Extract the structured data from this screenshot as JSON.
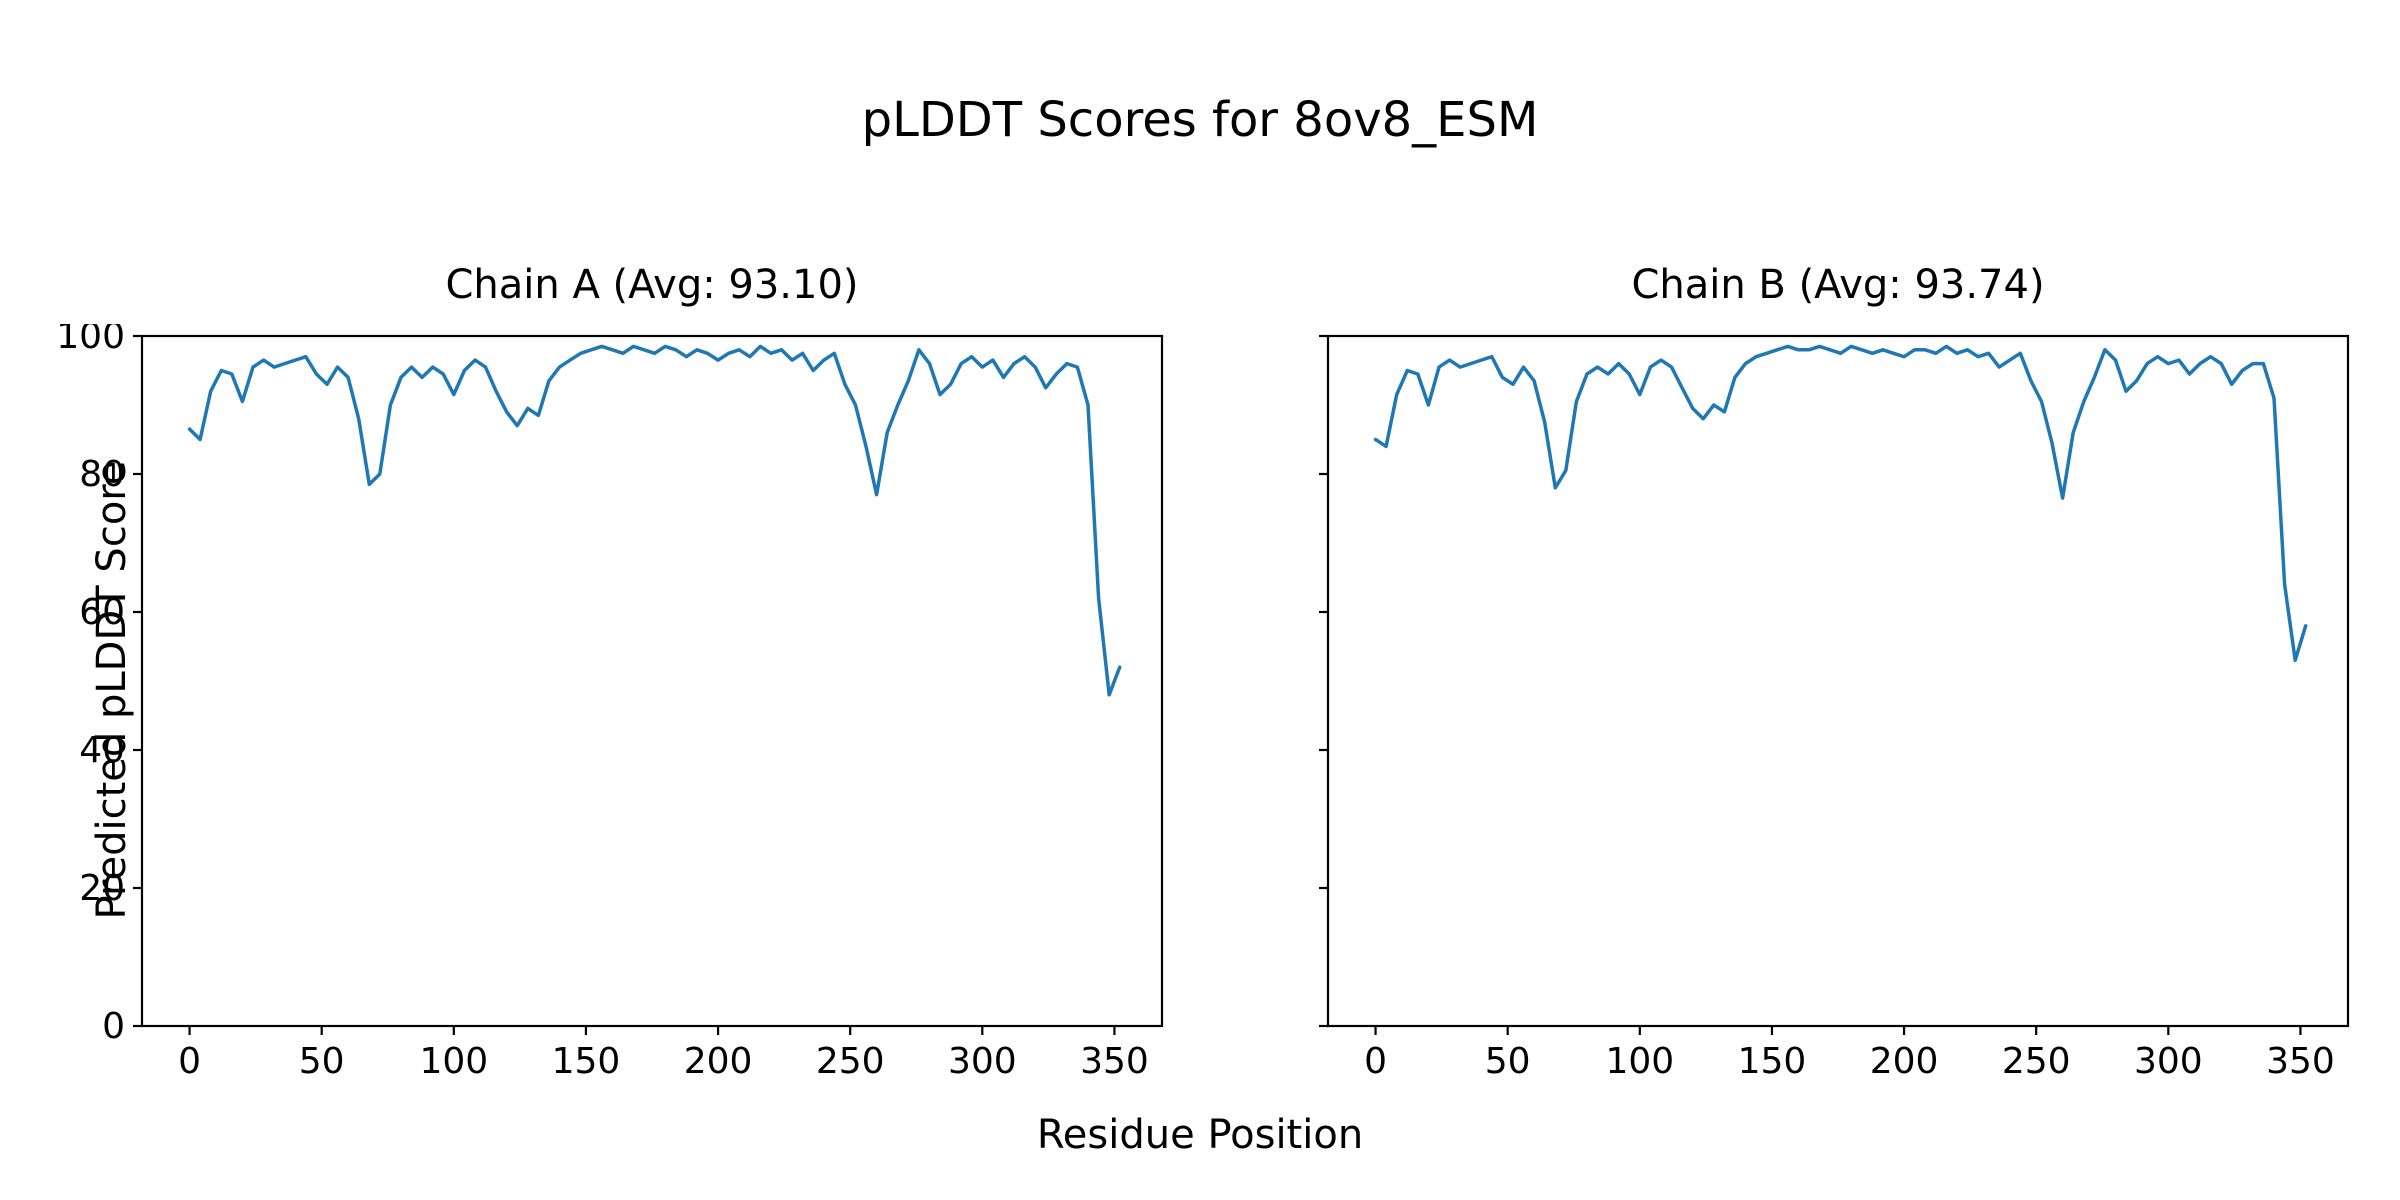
{
  "figure": {
    "title": "pLDDT Scores for 8ov8_ESM",
    "xlabel": "Residue Position",
    "ylabel": "Predicted pLDDT Score",
    "background": "#ffffff",
    "line_color": "#1f77b4",
    "axis_color": "#000000"
  },
  "chart_data": [
    {
      "type": "line",
      "title": "Chain A (Avg: 93.10)",
      "avg": 93.1,
      "xlabel": "Residue Position",
      "ylabel": "Predicted pLDDT Score",
      "xlim": [
        -18,
        368
      ],
      "ylim": [
        0,
        100
      ],
      "xticks": [
        0,
        50,
        100,
        150,
        200,
        250,
        300,
        350
      ],
      "yticks": [
        0,
        20,
        40,
        60,
        80,
        100
      ],
      "grid": false,
      "legend": "none",
      "x": [
        0,
        4,
        8,
        12,
        16,
        20,
        24,
        28,
        32,
        36,
        40,
        44,
        48,
        52,
        56,
        60,
        64,
        68,
        72,
        76,
        80,
        84,
        88,
        92,
        96,
        100,
        104,
        108,
        112,
        116,
        120,
        124,
        128,
        132,
        136,
        140,
        144,
        148,
        152,
        156,
        160,
        164,
        168,
        172,
        176,
        180,
        184,
        188,
        192,
        196,
        200,
        204,
        208,
        212,
        216,
        220,
        224,
        228,
        232,
        236,
        240,
        244,
        248,
        252,
        256,
        260,
        264,
        268,
        272,
        276,
        280,
        284,
        288,
        292,
        296,
        300,
        304,
        308,
        312,
        316,
        320,
        324,
        328,
        332,
        336,
        340,
        344,
        348,
        352
      ],
      "values": [
        86.5,
        85.0,
        92.0,
        95.0,
        94.5,
        90.5,
        95.5,
        96.5,
        95.5,
        96.0,
        96.5,
        97.0,
        94.5,
        93.0,
        95.5,
        94.0,
        88.0,
        78.5,
        80.0,
        90.0,
        94.0,
        95.5,
        94.0,
        95.5,
        94.5,
        91.5,
        95.0,
        96.5,
        95.5,
        92.0,
        89.0,
        87.0,
        89.5,
        88.5,
        93.5,
        95.5,
        96.5,
        97.5,
        98.0,
        98.5,
        98.0,
        97.5,
        98.5,
        98.0,
        97.5,
        98.5,
        98.0,
        97.0,
        98.0,
        97.5,
        96.5,
        97.5,
        98.0,
        97.0,
        98.5,
        97.5,
        98.0,
        96.5,
        97.5,
        95.0,
        96.5,
        97.5,
        93.0,
        90.0,
        84.0,
        77.0,
        86.0,
        90.0,
        93.5,
        98.0,
        96.0,
        91.5,
        93.0,
        96.0,
        97.0,
        95.5,
        96.5,
        94.0,
        96.0,
        97.0,
        95.5,
        92.5,
        94.5,
        96.0,
        95.5,
        90.0,
        62.0,
        48.0,
        52.0
      ]
    },
    {
      "type": "line",
      "title": "Chain B (Avg: 93.74)",
      "avg": 93.74,
      "xlabel": "Residue Position",
      "ylabel": "Predicted pLDDT Score",
      "xlim": [
        -18,
        368
      ],
      "ylim": [
        0,
        100
      ],
      "xticks": [
        0,
        50,
        100,
        150,
        200,
        250,
        300,
        350
      ],
      "yticks": [
        0,
        20,
        40,
        60,
        80,
        100
      ],
      "grid": false,
      "legend": "none",
      "x": [
        0,
        4,
        8,
        12,
        16,
        20,
        24,
        28,
        32,
        36,
        40,
        44,
        48,
        52,
        56,
        60,
        64,
        68,
        72,
        76,
        80,
        84,
        88,
        92,
        96,
        100,
        104,
        108,
        112,
        116,
        120,
        124,
        128,
        132,
        136,
        140,
        144,
        148,
        152,
        156,
        160,
        164,
        168,
        172,
        176,
        180,
        184,
        188,
        192,
        196,
        200,
        204,
        208,
        212,
        216,
        220,
        224,
        228,
        232,
        236,
        240,
        244,
        248,
        252,
        256,
        260,
        264,
        268,
        272,
        276,
        280,
        284,
        288,
        292,
        296,
        300,
        304,
        308,
        312,
        316,
        320,
        324,
        328,
        332,
        336,
        340,
        344,
        348,
        352
      ],
      "values": [
        85.0,
        84.0,
        91.5,
        95.0,
        94.5,
        90.0,
        95.5,
        96.5,
        95.5,
        96.0,
        96.5,
        97.0,
        94.0,
        93.0,
        95.5,
        93.5,
        87.5,
        78.0,
        80.5,
        90.5,
        94.5,
        95.5,
        94.5,
        96.0,
        94.5,
        91.5,
        95.5,
        96.5,
        95.5,
        92.5,
        89.5,
        88.0,
        90.0,
        89.0,
        94.0,
        96.0,
        97.0,
        97.5,
        98.0,
        98.5,
        98.0,
        98.0,
        98.5,
        98.0,
        97.5,
        98.5,
        98.0,
        97.5,
        98.0,
        97.5,
        97.0,
        98.0,
        98.0,
        97.5,
        98.5,
        97.5,
        98.0,
        97.0,
        97.5,
        95.5,
        96.5,
        97.5,
        93.5,
        90.5,
        84.5,
        76.5,
        86.0,
        90.5,
        94.0,
        98.0,
        96.5,
        92.0,
        93.5,
        96.0,
        97.0,
        96.0,
        96.5,
        94.5,
        96.0,
        97.0,
        96.0,
        93.0,
        95.0,
        96.0,
        96.0,
        91.0,
        64.0,
        53.0,
        58.0
      ]
    }
  ]
}
